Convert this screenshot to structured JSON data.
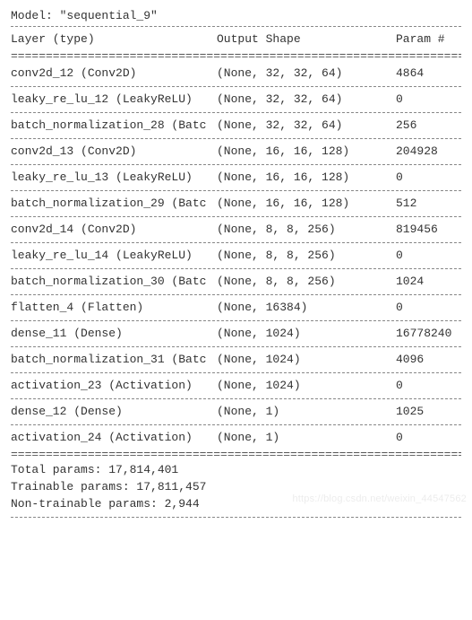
{
  "model_name": "Model: \"sequential_9\"",
  "header": {
    "layer": "Layer (type)",
    "shape": "Output Shape",
    "param": "Param #"
  },
  "rows": [
    {
      "layer": "conv2d_12 (Conv2D)",
      "shape": "(None, 32, 32, 64)",
      "param": "4864"
    },
    {
      "layer": "leaky_re_lu_12 (LeakyReLU)",
      "shape": "(None, 32, 32, 64)",
      "param": "0"
    },
    {
      "layer": "batch_normalization_28 (Batc",
      "shape": "(None, 32, 32, 64)",
      "param": "256"
    },
    {
      "layer": "conv2d_13 (Conv2D)",
      "shape": "(None, 16, 16, 128)",
      "param": "204928"
    },
    {
      "layer": "leaky_re_lu_13 (LeakyReLU)",
      "shape": "(None, 16, 16, 128)",
      "param": "0"
    },
    {
      "layer": "batch_normalization_29 (Batc",
      "shape": "(None, 16, 16, 128)",
      "param": "512"
    },
    {
      "layer": "conv2d_14 (Conv2D)",
      "shape": "(None, 8, 8, 256)",
      "param": "819456"
    },
    {
      "layer": "leaky_re_lu_14 (LeakyReLU)",
      "shape": "(None, 8, 8, 256)",
      "param": "0"
    },
    {
      "layer": "batch_normalization_30 (Batc",
      "shape": "(None, 8, 8, 256)",
      "param": "1024"
    },
    {
      "layer": "flatten_4 (Flatten)",
      "shape": "(None, 16384)",
      "param": "0"
    },
    {
      "layer": "dense_11 (Dense)",
      "shape": "(None, 1024)",
      "param": "16778240"
    },
    {
      "layer": "batch_normalization_31 (Batc",
      "shape": "(None, 1024)",
      "param": "4096"
    },
    {
      "layer": "activation_23 (Activation)",
      "shape": "(None, 1024)",
      "param": "0"
    },
    {
      "layer": "dense_12 (Dense)",
      "shape": "(None, 1)",
      "param": "1025"
    },
    {
      "layer": "activation_24 (Activation)",
      "shape": "(None, 1)",
      "param": "0"
    }
  ],
  "totals": {
    "total": "Total params: 17,814,401",
    "trainable": "Trainable params: 17,811,457",
    "nontrainable": "Non-trainable params: 2,944"
  },
  "double_rule": "=================================================================",
  "watermark": "https://blog.csdn.net/weixin_44547562"
}
